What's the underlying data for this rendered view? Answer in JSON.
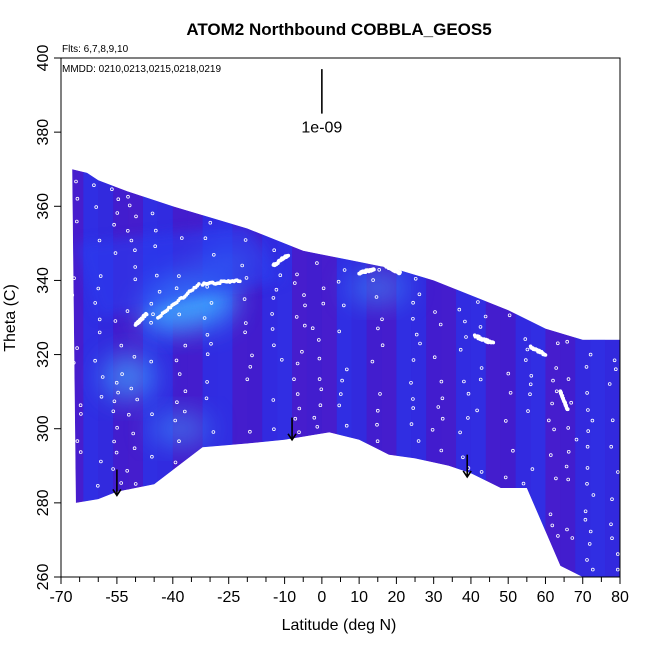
{
  "chart_data": {
    "type": "heatmap",
    "title": "ATOM2 Northbound COBBLA_GEOS5",
    "flights_label": "Flts: 6,7,8,9,10",
    "dates_label": "MMDD: 0210,0213,0215,0218,0219",
    "xlabel": "Latitude (deg N)",
    "ylabel": "Theta (C)",
    "xlim": [
      -70,
      80
    ],
    "ylim": [
      260,
      400
    ],
    "x_ticks": [
      -70,
      -55,
      -40,
      -25,
      -10,
      0,
      10,
      20,
      30,
      40,
      50,
      60,
      70,
      80
    ],
    "x_tick_labels": [
      "-70",
      "-55",
      "-40",
      "-25",
      "-10",
      "0",
      "10",
      "20",
      "30",
      "40",
      "50",
      "60",
      "70",
      "80"
    ],
    "x_minor_ticks": [
      -65,
      -60,
      -50,
      -45,
      -35,
      -30,
      -20,
      -15,
      -5,
      5,
      15,
      25,
      35,
      45,
      55,
      65,
      75
    ],
    "y_ticks": [
      260,
      280,
      300,
      320,
      340,
      360,
      380,
      400
    ],
    "y_tick_labels": [
      "260",
      "280",
      "300",
      "320",
      "340",
      "360",
      "380",
      "400"
    ],
    "scale_marker": {
      "x": 0,
      "y_top": 397,
      "y_bottom": 385,
      "label": "1e-09"
    },
    "upper_boundary": [
      [
        -67,
        370
      ],
      [
        -63,
        369
      ],
      [
        -60,
        367
      ],
      [
        -52,
        364
      ],
      [
        -40,
        360
      ],
      [
        -30,
        357
      ],
      [
        -20,
        354
      ],
      [
        -10,
        350
      ],
      [
        -5,
        348
      ],
      [
        0,
        347
      ],
      [
        10,
        345
      ],
      [
        20,
        343
      ],
      [
        30,
        340
      ],
      [
        40,
        336
      ],
      [
        50,
        332
      ],
      [
        60,
        327
      ],
      [
        70,
        324
      ],
      [
        80,
        324
      ]
    ],
    "lower_boundary": [
      [
        80,
        260
      ],
      [
        70,
        260
      ],
      [
        64,
        263
      ],
      [
        55,
        284
      ],
      [
        48,
        284
      ],
      [
        40,
        288
      ],
      [
        34,
        290
      ],
      [
        25,
        292
      ],
      [
        18,
        293
      ],
      [
        10,
        297
      ],
      [
        2,
        299
      ],
      [
        -10,
        297
      ],
      [
        -20,
        296
      ],
      [
        -32,
        295
      ],
      [
        -45,
        285
      ],
      [
        -55,
        283
      ],
      [
        -60,
        281
      ],
      [
        -66,
        280
      ]
    ],
    "bright_regions": [
      {
        "lat": -34,
        "theta": 335,
        "intensity": "high"
      },
      {
        "lat": -42,
        "theta": 332,
        "intensity": "medium"
      },
      {
        "lat": -52,
        "theta": 314,
        "intensity": "medium"
      },
      {
        "lat": -38,
        "theta": 300,
        "intensity": "low"
      },
      {
        "lat": -25,
        "theta": 345,
        "intensity": "low"
      },
      {
        "lat": 15,
        "theta": 338,
        "intensity": "low"
      }
    ],
    "descent_arrows": [
      {
        "lat": -55,
        "theta_top": 289,
        "theta_bottom": 282
      },
      {
        "lat": -8,
        "theta_top": 303,
        "theta_bottom": 297
      },
      {
        "lat": 39,
        "theta_top": 293,
        "theta_bottom": 287
      }
    ],
    "flight_tracks": [
      {
        "name": "track-a",
        "lat0": -50,
        "lat1": -47,
        "theta0": 328,
        "theta1": 331
      },
      {
        "name": "track-b",
        "lat0": -44,
        "lat1": -33,
        "theta0": 330,
        "theta1": 339
      },
      {
        "name": "track-c",
        "lat0": -32,
        "lat1": -22,
        "theta0": 339,
        "theta1": 340
      },
      {
        "name": "track-d",
        "lat0": -13,
        "lat1": -9,
        "theta0": 344,
        "theta1": 347
      },
      {
        "name": "track-e",
        "lat0": 10,
        "lat1": 14,
        "theta0": 342,
        "theta1": 343
      },
      {
        "name": "track-f",
        "lat0": 17,
        "lat1": 21,
        "theta0": 344,
        "theta1": 342
      },
      {
        "name": "track-g",
        "lat0": 41,
        "lat1": 46,
        "theta0": 325,
        "theta1": 323
      },
      {
        "name": "track-h",
        "lat0": 56,
        "lat1": 60,
        "theta0": 322,
        "theta1": 320
      },
      {
        "name": "track-i",
        "lat0": 64,
        "lat1": 66,
        "theta0": 310,
        "theta1": 305
      }
    ],
    "vertical_profiles": [
      -66,
      -60,
      -55,
      -51,
      -45,
      -38,
      -30,
      -20,
      -12,
      -6,
      -1,
      6,
      15,
      25,
      31,
      38,
      43,
      50,
      55,
      62,
      67,
      72,
      78
    ],
    "colors": {
      "background_field": "#3a1bd0",
      "mid_field": "#2a3cf0",
      "bright_field": "#3fa6ff",
      "purple_field": "#5a22c8",
      "dots": "#ffffff",
      "axis": "#000000"
    }
  }
}
